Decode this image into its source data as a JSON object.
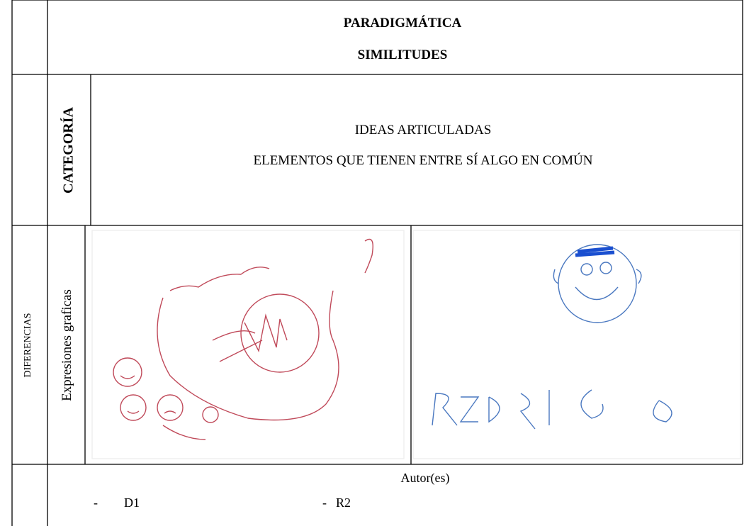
{
  "header": {
    "title": "PARADIGMÁTICA",
    "subtitle": "SIMILITUDES"
  },
  "category": {
    "label": "CATEGORÍA",
    "lines": [
      "IDEAS ARTICULADAS",
      "ELEMENTOS QUE TIENEN ENTRE SÍ ALGO EN COMÚN"
    ]
  },
  "differences": {
    "label": "DIFERENCIAS",
    "sublabel": "Expresiones graficas"
  },
  "authors": {
    "label": "Autor(es)",
    "items": [
      {
        "marker": "-",
        "name": "D1"
      },
      {
        "marker": "-",
        "name": "R2"
      }
    ]
  }
}
